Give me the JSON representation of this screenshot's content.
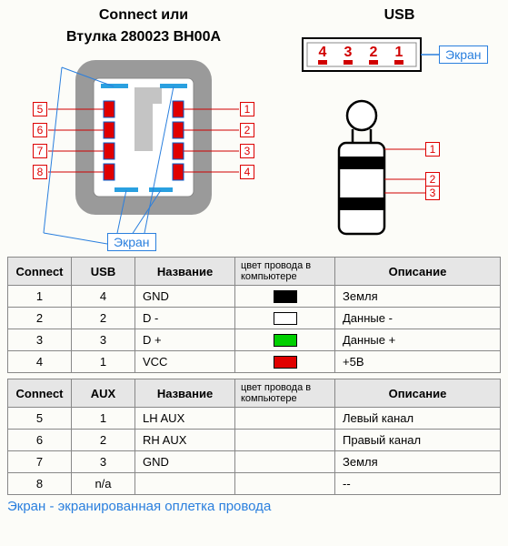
{
  "connector": {
    "title_line1": "Connect или",
    "title_line2": "Втулка 280023 BH00A",
    "left_pins": [
      "5",
      "6",
      "7",
      "8"
    ],
    "right_pins": [
      "1",
      "2",
      "3",
      "4"
    ],
    "shield_label": "Экран",
    "outer_color": "#9a9a9a",
    "inner_color": "#ffffff",
    "pad_color": "#e00000",
    "pad_stroke": "#0060d0",
    "shield_line_color": "#2a7fde",
    "pin_line_color": "#d00000"
  },
  "usb": {
    "title": "USB",
    "pins": [
      "4",
      "3",
      "2",
      "1"
    ],
    "shield_label": "Экран",
    "body_fill": "#ffffff",
    "body_stroke": "#000000",
    "pin_color": "#d00000",
    "shield_line_color": "#2a7fde"
  },
  "jack": {
    "rings": [
      "1",
      "2",
      "3"
    ],
    "outline_color": "#000000",
    "fill_color": "#ffffff",
    "ring_color": "#000000"
  },
  "table1": {
    "headers": [
      "Connect",
      "USB",
      "Название",
      "цвет провода в компьютере",
      "Описание"
    ],
    "rows": [
      {
        "c": "1",
        "u": "4",
        "name": "GND",
        "color": "#000000",
        "desc": "Земля"
      },
      {
        "c": "2",
        "u": "2",
        "name": "D -",
        "color": "#ffffff",
        "desc": "Данные -"
      },
      {
        "c": "3",
        "u": "3",
        "name": "D +",
        "color": "#00d000",
        "desc": "Данные +"
      },
      {
        "c": "4",
        "u": "1",
        "name": "VCC",
        "color": "#e00000",
        "desc": "+5В"
      }
    ]
  },
  "table2": {
    "headers": [
      "Connect",
      "AUX",
      "Название",
      "цвет провода в компьютере",
      "Описание"
    ],
    "rows": [
      {
        "c": "5",
        "u": "1",
        "name": "LH AUX",
        "color": null,
        "desc": "Левый канал"
      },
      {
        "c": "6",
        "u": "2",
        "name": "RH AUX",
        "color": null,
        "desc": "Правый канал"
      },
      {
        "c": "7",
        "u": "3",
        "name": "GND",
        "color": null,
        "desc": "Земля"
      },
      {
        "c": "8",
        "u": "n/a",
        "name": "",
        "color": null,
        "desc": "--"
      }
    ]
  },
  "footnote": "Экран - экранированная оплетка провода"
}
